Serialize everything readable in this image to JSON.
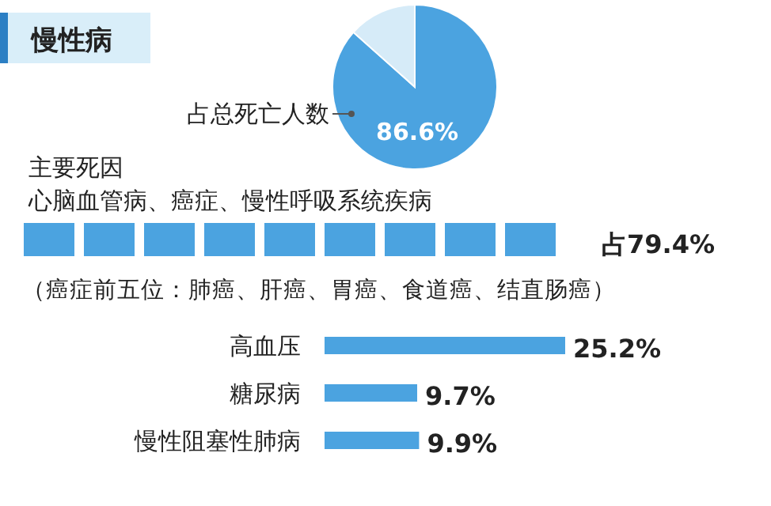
{
  "chart_data": [
    {
      "type": "pie",
      "title": "慢性病",
      "categories": [
        "占总死亡人数",
        null
      ],
      "values": [
        86.6,
        13.4
      ],
      "colors": [
        "#4ba3e0",
        "#d6ebf8"
      ],
      "value_labels": [
        "86.6%",
        null
      ]
    },
    {
      "type": "other",
      "title": "主要死因",
      "subtitle": "心脑血管病、癌症、慢性呼吸系统疾病",
      "annotations": [
        "占79.4%",
        "（癌症前五位：肺癌、肝癌、胃癌、食道癌、结直肠癌）"
      ]
    },
    {
      "type": "bar",
      "orientation": "horizontal",
      "categories": [
        "高血压",
        "糖尿病",
        "慢性阻塞性肺病"
      ],
      "values": [
        25.2,
        9.7,
        9.9
      ],
      "color": "#4ba3e0",
      "value_labels": [
        "25.2%",
        "9.7%",
        "9.9%"
      ]
    }
  ]
}
